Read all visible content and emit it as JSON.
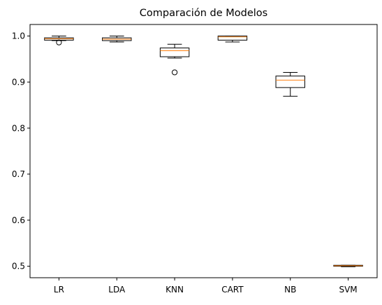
{
  "chart_data": {
    "type": "box",
    "title": "Comparación de Modelos",
    "xlabel": "",
    "ylabel": "",
    "ylim": [
      0.475,
      1.025
    ],
    "yticks": [
      0.5,
      0.6,
      0.7,
      0.8,
      0.9,
      1.0
    ],
    "ytick_labels": [
      "0.5",
      "0.6",
      "0.7",
      "0.8",
      "0.9",
      "1.0"
    ],
    "categories": [
      "LR",
      "LDA",
      "KNN",
      "CART",
      "NB",
      "SVM"
    ],
    "boxes": [
      {
        "name": "LR",
        "whisker_low": 0.99,
        "q1": 0.991,
        "median": 0.994,
        "q3": 0.996,
        "whisker_high": 1.0,
        "outliers": [
          0.986
        ]
      },
      {
        "name": "LDA",
        "whisker_low": 0.987,
        "q1": 0.99,
        "median": 0.993,
        "q3": 0.996,
        "whisker_high": 1.0,
        "outliers": []
      },
      {
        "name": "KNN",
        "whisker_low": 0.952,
        "q1": 0.955,
        "median": 0.968,
        "q3": 0.974,
        "whisker_high": 0.982,
        "outliers": [
          0.921
        ]
      },
      {
        "name": "CART",
        "whisker_low": 0.987,
        "q1": 0.991,
        "median": 0.998,
        "q3": 1.0,
        "whisker_high": 1.0,
        "outliers": []
      },
      {
        "name": "NB",
        "whisker_low": 0.869,
        "q1": 0.888,
        "median": 0.904,
        "q3": 0.913,
        "whisker_high": 0.921,
        "outliers": []
      },
      {
        "name": "SVM",
        "whisker_low": 0.499,
        "q1": 0.5,
        "median": 0.501,
        "q3": 0.502,
        "whisker_high": 0.502,
        "outliers": []
      }
    ],
    "grid": false,
    "legend": "none",
    "box_color": "#000000",
    "median_color": "#ff7f0e"
  }
}
